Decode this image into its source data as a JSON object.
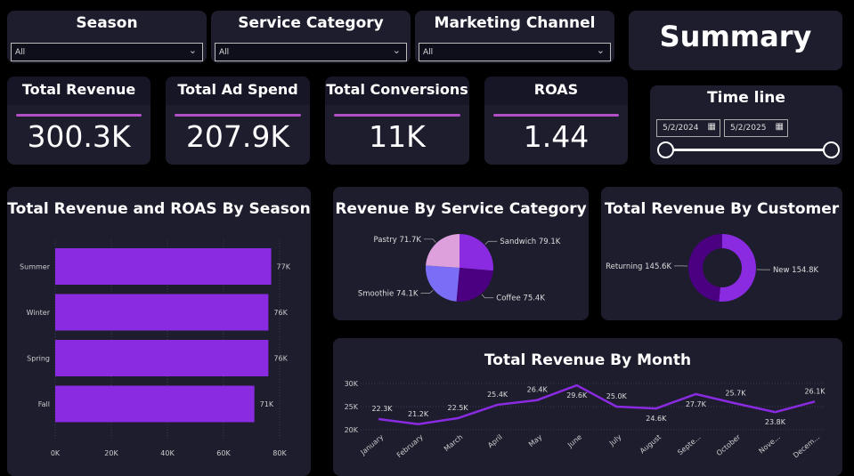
{
  "filters": [
    {
      "label": "Season",
      "value": "All"
    },
    {
      "label": "Service Category",
      "value": "All"
    },
    {
      "label": "Marketing Channel",
      "value": "All"
    }
  ],
  "summary_title": "Summary",
  "kpis": [
    {
      "label": "Total Revenue",
      "value": "300.3K"
    },
    {
      "label": "Total Ad Spend",
      "value": "207.9K"
    },
    {
      "label": "Total Conversions",
      "value": "11K"
    },
    {
      "label": "ROAS",
      "value": "1.44"
    }
  ],
  "timeline": {
    "title": "Time line",
    "start": "5/2/2024",
    "end": "5/2/2025",
    "range_fraction": [
      0,
      1
    ]
  },
  "colors": {
    "accent": "#8a2be2",
    "panel": "#1e1d2e",
    "kpi_line": "#b14fc5"
  },
  "chart_data": [
    {
      "type": "bar",
      "orientation": "horizontal",
      "title": "Total Revenue and ROAS By Season",
      "categories": [
        "Summer",
        "Winter",
        "Spring",
        "Fall"
      ],
      "values": [
        77,
        76,
        76,
        71
      ],
      "data_labels": [
        "77K",
        "76K",
        "76K",
        "71K"
      ],
      "unit": "K",
      "xlim": [
        0,
        80
      ],
      "x_ticks": [
        "0K",
        "20K",
        "40K",
        "60K",
        "80K"
      ],
      "grid": true,
      "color": "#8a2be2"
    },
    {
      "type": "pie",
      "title": "Revenue By Service Category",
      "slices": [
        {
          "label": "Sandwich",
          "value": 79.1,
          "display": "Sandwich 79.1K",
          "color": "#8a2be2"
        },
        {
          "label": "Coffee",
          "value": 75.4,
          "display": "Coffee 75.4K",
          "color": "#4b0082"
        },
        {
          "label": "Smoothie",
          "value": 74.1,
          "display": "Smoothie 74.1K",
          "color": "#7b6ef6"
        },
        {
          "label": "Pastry",
          "value": 71.7,
          "display": "Pastry 71.7K",
          "color": "#dda0dd"
        }
      ]
    },
    {
      "type": "pie",
      "variant": "donut",
      "title": "Total Revenue By Customer",
      "slices": [
        {
          "label": "New",
          "value": 154.8,
          "display": "New 154.8K",
          "color": "#8a2be2"
        },
        {
          "label": "Returning",
          "value": 145.6,
          "display": "Returning 145.6K",
          "color": "#4b0082"
        }
      ]
    },
    {
      "type": "line",
      "title": "Total Revenue By Month",
      "categories": [
        "January",
        "February",
        "March",
        "April",
        "May",
        "June",
        "July",
        "August",
        "Septe...",
        "October",
        "Nove...",
        "Decem..."
      ],
      "values": [
        22.3,
        21.2,
        22.5,
        25.4,
        26.4,
        29.6,
        25.0,
        24.6,
        27.7,
        25.7,
        23.8,
        26.1
      ],
      "data_labels": [
        "22.3K",
        "21.2K",
        "22.5K",
        "25.4K",
        "26.4K",
        "29.6K",
        "25.0K",
        "24.6K",
        "27.7K",
        "25.7K",
        "23.8K",
        "26.1K"
      ],
      "ylim": [
        20,
        30
      ],
      "y_ticks": [
        "20K",
        "25K",
        "30K"
      ],
      "grid": true,
      "color": "#8a2be2"
    }
  ]
}
